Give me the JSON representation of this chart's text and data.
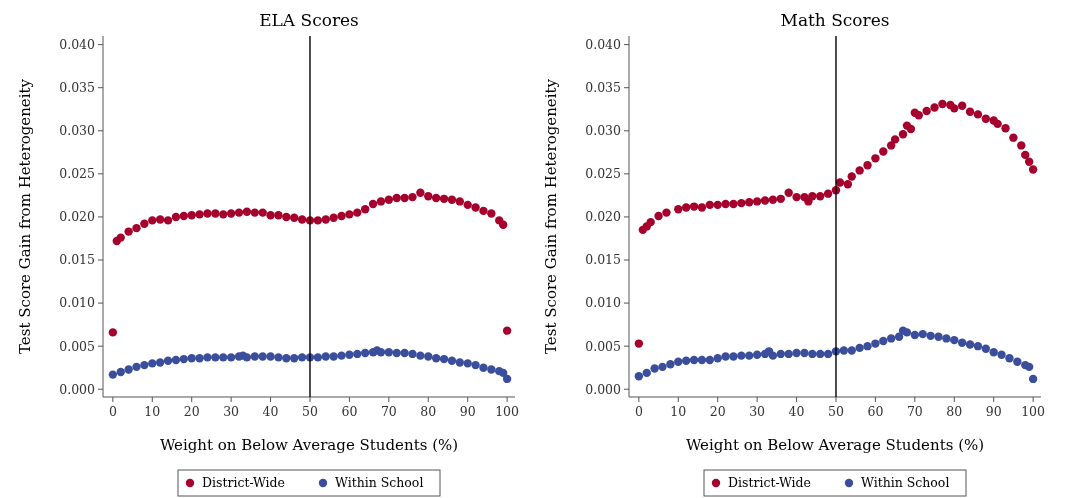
{
  "chart_data": [
    {
      "type": "scatter",
      "title": "ELA Scores",
      "xlabel": "Weight on Below Average Students (%)",
      "ylabel": "Test Score Gain from Heterogeneity",
      "xlim": [
        -2.5,
        102
      ],
      "ylim": [
        -0.0009,
        0.041
      ],
      "xticks": [
        0,
        10,
        20,
        30,
        40,
        50,
        60,
        70,
        80,
        90,
        100
      ],
      "yticks": [
        {
          "value": 0,
          "label": "0.000"
        },
        {
          "value": 0.005,
          "label": "0.005"
        },
        {
          "value": 0.01,
          "label": "0.010"
        },
        {
          "value": 0.015,
          "label": "0.015"
        },
        {
          "value": 0.02,
          "label": "0.020"
        },
        {
          "value": 0.025,
          "label": "0.025"
        },
        {
          "value": 0.03,
          "label": "0.030"
        },
        {
          "value": 0.035,
          "label": "0.035"
        },
        {
          "value": 0.04,
          "label": "0.040"
        }
      ],
      "grid": false,
      "legend": "bottom",
      "marker": "circle",
      "ref_lines": [
        {
          "axis": "x",
          "value": 50,
          "color": "#000000"
        }
      ],
      "series": [
        {
          "name": "District-Wide",
          "color": "#a6002c",
          "x": [
            0,
            1,
            2,
            4,
            6,
            8,
            10,
            12,
            14,
            16,
            18,
            20,
            22,
            24,
            26,
            28,
            30,
            32,
            34,
            36,
            38,
            40,
            42,
            44,
            46,
            48,
            50,
            52,
            54,
            56,
            58,
            60,
            62,
            64,
            66,
            68,
            70,
            72,
            74,
            76,
            78,
            80,
            82,
            84,
            86,
            88,
            90,
            92,
            94,
            96,
            98,
            99,
            100
          ],
          "values": [
            0.0066,
            0.0172,
            0.0176,
            0.0183,
            0.0187,
            0.0192,
            0.0196,
            0.0197,
            0.0196,
            0.02,
            0.0201,
            0.0202,
            0.0203,
            0.0204,
            0.0204,
            0.0203,
            0.0204,
            0.0205,
            0.0206,
            0.0205,
            0.0205,
            0.0202,
            0.0202,
            0.02,
            0.0199,
            0.0197,
            0.0196,
            0.0196,
            0.0197,
            0.0199,
            0.0201,
            0.0203,
            0.0205,
            0.0209,
            0.0215,
            0.0218,
            0.022,
            0.0222,
            0.0222,
            0.0223,
            0.0228,
            0.0224,
            0.0222,
            0.0221,
            0.022,
            0.0218,
            0.0214,
            0.0211,
            0.0207,
            0.0204,
            0.0196,
            0.0191,
            0.0068
          ]
        },
        {
          "name": "Within School",
          "color": "#3a4e9c",
          "x": [
            0,
            2,
            4,
            6,
            8,
            10,
            12,
            14,
            16,
            18,
            20,
            22,
            24,
            26,
            28,
            30,
            32,
            33,
            34,
            36,
            38,
            40,
            42,
            44,
            46,
            48,
            50,
            52,
            54,
            56,
            58,
            60,
            62,
            64,
            66,
            67,
            68,
            70,
            72,
            74,
            76,
            78,
            80,
            82,
            84,
            86,
            88,
            90,
            92,
            94,
            96,
            98,
            99,
            100
          ],
          "values": [
            0.0017,
            0.002,
            0.0023,
            0.0026,
            0.0028,
            0.003,
            0.0031,
            0.0033,
            0.0034,
            0.0035,
            0.0036,
            0.0036,
            0.0037,
            0.0037,
            0.0037,
            0.0037,
            0.0038,
            0.0039,
            0.0037,
            0.0038,
            0.0038,
            0.0038,
            0.0037,
            0.0036,
            0.0036,
            0.0037,
            0.0037,
            0.0037,
            0.0038,
            0.0038,
            0.0039,
            0.004,
            0.0041,
            0.0042,
            0.0043,
            0.0045,
            0.0043,
            0.0043,
            0.0042,
            0.0042,
            0.0041,
            0.0039,
            0.0038,
            0.0036,
            0.0035,
            0.0033,
            0.0031,
            0.003,
            0.0028,
            0.0025,
            0.0023,
            0.0021,
            0.0019,
            0.0012
          ]
        }
      ]
    },
    {
      "type": "scatter",
      "title": "Math Scores",
      "xlabel": "Weight on Below Average Students (%)",
      "ylabel": "Test Score Gain from Heterogeneity",
      "xlim": [
        -2.5,
        102
      ],
      "ylim": [
        -0.0009,
        0.041
      ],
      "xticks": [
        0,
        10,
        20,
        30,
        40,
        50,
        60,
        70,
        80,
        90,
        100
      ],
      "yticks": [
        {
          "value": 0,
          "label": "0.000"
        },
        {
          "value": 0.005,
          "label": "0.005"
        },
        {
          "value": 0.01,
          "label": "0.010"
        },
        {
          "value": 0.015,
          "label": "0.015"
        },
        {
          "value": 0.02,
          "label": "0.020"
        },
        {
          "value": 0.025,
          "label": "0.025"
        },
        {
          "value": 0.03,
          "label": "0.030"
        },
        {
          "value": 0.035,
          "label": "0.035"
        },
        {
          "value": 0.04,
          "label": "0.040"
        }
      ],
      "grid": false,
      "legend": "bottom",
      "marker": "circle",
      "ref_lines": [
        {
          "axis": "x",
          "value": 50,
          "color": "#000000"
        }
      ],
      "series": [
        {
          "name": "District-Wide",
          "color": "#a6002c",
          "x": [
            0,
            1,
            2,
            3,
            5,
            7,
            10,
            12,
            14,
            16,
            18,
            20,
            22,
            24,
            26,
            28,
            30,
            32,
            34,
            36,
            38,
            40,
            42,
            43,
            44,
            46,
            48,
            50,
            51,
            53,
            54,
            56,
            58,
            60,
            62,
            64,
            65,
            67,
            68,
            69,
            70,
            71,
            73,
            75,
            77,
            79,
            80,
            82,
            84,
            86,
            88,
            90,
            91,
            93,
            95,
            97,
            98,
            99,
            100
          ],
          "values": [
            0.0053,
            0.0185,
            0.0189,
            0.0194,
            0.0201,
            0.0205,
            0.0209,
            0.0211,
            0.0212,
            0.0211,
            0.0214,
            0.0214,
            0.0215,
            0.0215,
            0.0216,
            0.0217,
            0.0218,
            0.0219,
            0.022,
            0.0221,
            0.0228,
            0.0223,
            0.0223,
            0.0218,
            0.0224,
            0.0224,
            0.0227,
            0.0231,
            0.024,
            0.0238,
            0.0247,
            0.0254,
            0.026,
            0.0268,
            0.0276,
            0.0283,
            0.029,
            0.0296,
            0.0306,
            0.0302,
            0.0321,
            0.0318,
            0.0323,
            0.0327,
            0.0331,
            0.033,
            0.0326,
            0.0329,
            0.0322,
            0.0319,
            0.0314,
            0.0312,
            0.0308,
            0.0303,
            0.0292,
            0.0283,
            0.0272,
            0.0264,
            0.0255
          ]
        },
        {
          "name": "Within School",
          "color": "#3a4e9c",
          "x": [
            0,
            2,
            4,
            6,
            8,
            10,
            12,
            14,
            16,
            18,
            20,
            22,
            24,
            26,
            28,
            30,
            32,
            33,
            34,
            36,
            38,
            40,
            42,
            44,
            46,
            48,
            50,
            52,
            54,
            56,
            58,
            60,
            62,
            64,
            66,
            67,
            68,
            70,
            72,
            74,
            76,
            78,
            80,
            82,
            84,
            86,
            88,
            90,
            92,
            94,
            96,
            98,
            99,
            100
          ],
          "values": [
            0.0015,
            0.0019,
            0.0024,
            0.0026,
            0.0029,
            0.0032,
            0.0033,
            0.0034,
            0.0034,
            0.0034,
            0.0036,
            0.0038,
            0.0038,
            0.0039,
            0.0039,
            0.004,
            0.0041,
            0.0044,
            0.0039,
            0.0041,
            0.0041,
            0.0042,
            0.0042,
            0.0041,
            0.0041,
            0.0041,
            0.0044,
            0.0045,
            0.0045,
            0.0048,
            0.005,
            0.0053,
            0.0056,
            0.0059,
            0.0061,
            0.0068,
            0.0066,
            0.0063,
            0.0064,
            0.0062,
            0.0061,
            0.0059,
            0.0057,
            0.0054,
            0.0052,
            0.005,
            0.0047,
            0.0043,
            0.004,
            0.0036,
            0.0032,
            0.0028,
            0.0026,
            0.0012
          ]
        }
      ]
    }
  ]
}
